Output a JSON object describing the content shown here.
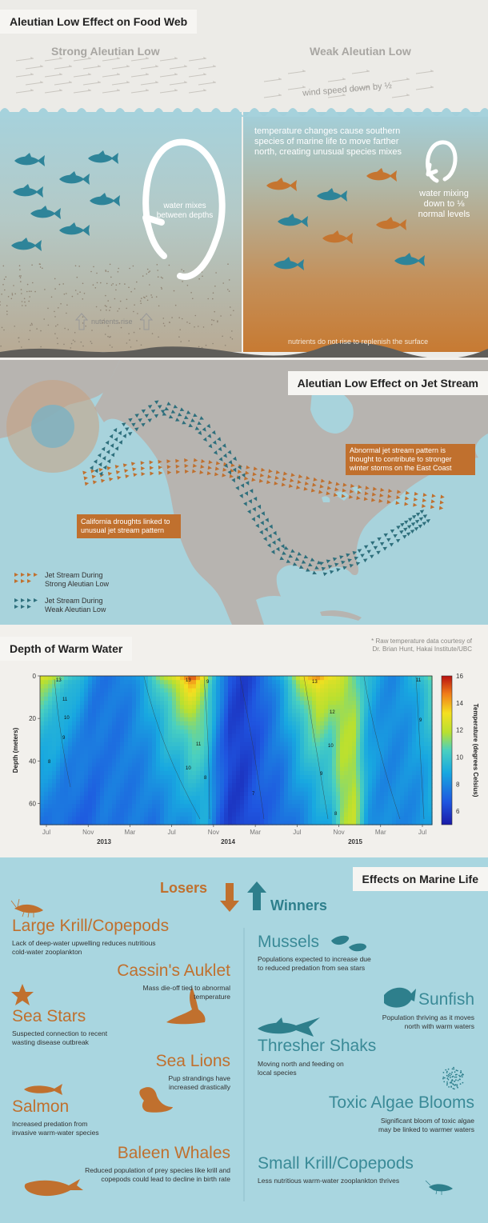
{
  "section1": {
    "title": "Aleutian Low Effect on Food Web",
    "strong_label": "Strong Aleutian Low",
    "weak_label": "Weak Aleutian Low",
    "wind_label": "wind speed down by ½",
    "mix_label_line1": "water mixes",
    "mix_label_line2": "between depths",
    "nutrients_rise": "nutrients rise",
    "temp_text_line1": "temperature changes cause southern",
    "temp_text_line2": "species of marine life to move farther",
    "temp_text_line3": "north, creating unusual species mixes",
    "weak_mix_line1": "water mixing",
    "weak_mix_line2": "down to ⅛",
    "weak_mix_line3": "normal levels",
    "nutrients_not": "nutrients do not rise to replenish the surface"
  },
  "section2": {
    "title": "Aleutian Low Effect on Jet Stream",
    "east_line1": "Abnormal jet stream pattern is",
    "east_line2": "thought to contribute to stronger",
    "east_line3": "winter storms on the East Coast",
    "cal_line1": "California droughts linked to",
    "cal_line2": "unusual jet stream pattern",
    "legend_strong_line1": "Jet Stream During",
    "legend_strong_line2": "Strong Aleutian Low",
    "legend_weak_line1": "Jet Stream During",
    "legend_weak_line2": "Weak Aleutian Low",
    "colors": {
      "strong": "#c0702e",
      "weak": "#2e6f7c"
    }
  },
  "section3": {
    "title": "Depth of Warm Water",
    "credit_line1": "* Raw temperature data courtesy of",
    "credit_line2": "Dr. Brian Hunt, Hakai Institute/UBC"
  },
  "chart_data": {
    "type": "heatmap",
    "ylabel": "Depth (meters)",
    "colorbar_label": "Temperature (degrees Celsius)",
    "y_ticks": [
      0,
      20,
      40,
      60
    ],
    "ylim": [
      70,
      0
    ],
    "colorbar_ticks": [
      6,
      8,
      10,
      12,
      14,
      16
    ],
    "colorbar_range": [
      5,
      16
    ],
    "x_ticks": [
      "Jul",
      "Nov",
      "Mar",
      "Jul",
      "Nov",
      "Mar",
      "Jul",
      "Nov",
      "Mar",
      "Jul"
    ],
    "years": [
      "2013",
      "2014",
      "2015"
    ],
    "contour_labels": [
      "13",
      "11",
      "10",
      "9",
      "8",
      "13",
      "11",
      "10",
      "9",
      "8",
      "7",
      "13",
      "12",
      "10",
      "9",
      "8",
      "11",
      "9"
    ],
    "surface_temp_by_month": [
      12.5,
      11.5,
      10.5,
      9.5,
      8,
      7.5,
      7.5,
      8,
      9,
      10.5,
      12,
      13.5,
      15,
      12.5,
      9,
      6.5,
      6,
      6.5,
      7.5,
      9,
      11,
      13,
      14.5,
      13,
      12,
      11,
      9.5,
      8.5,
      8,
      8.5,
      9.5,
      11
    ],
    "bottom_temp_by_month": [
      7.5,
      7.5,
      7,
      7,
      7,
      7.5,
      7.5,
      7.5,
      7.5,
      7.5,
      8,
      8,
      8.5,
      9,
      7,
      6,
      6,
      6.5,
      7,
      7,
      7.5,
      8,
      8.5,
      9,
      11.5,
      12,
      8.5,
      8,
      8,
      8,
      8,
      8.5
    ]
  },
  "section4": {
    "title": "Effects on Marine Life",
    "losers_label": "Losers",
    "winners_label": "Winners",
    "losers": [
      {
        "name": "Large Krill/Copepods",
        "desc_line1": "Lack of deep-water upwelling reduces nutritious",
        "desc_line2": "cold-water zooplankton",
        "icon": "krill-icon"
      },
      {
        "name": "Cassin's Auklet",
        "desc_line1": "Mass die-off tied to abnormal",
        "desc_line2": "temperature",
        "icon": "bird-icon"
      },
      {
        "name": "Sea Stars",
        "desc_line1": "Suspected connection to recent",
        "desc_line2": "wasting disease outbreak",
        "icon": "starfish-icon"
      },
      {
        "name": "Sea Lions",
        "desc_line1": "Pup strandings have",
        "desc_line2": "increased drastically",
        "icon": "sea-lion-icon"
      },
      {
        "name": "Salmon",
        "desc_line1": "Increased predation from",
        "desc_line2": "invasive warm-water species",
        "icon": "salmon-icon"
      },
      {
        "name": "Baleen Whales",
        "desc_line1": "Reduced population of prey species like krill and",
        "desc_line2": "copepods could lead to decline in birth rate",
        "icon": "whale-icon"
      }
    ],
    "winners": [
      {
        "name": "Mussels",
        "desc_line1": "Populations expected to increase due",
        "desc_line2": "to reduced predation from sea stars",
        "icon": "mussel-icon"
      },
      {
        "name": "Sunfish",
        "desc_line1": "Population thriving as it moves",
        "desc_line2": "north with warm waters",
        "icon": "sunfish-icon"
      },
      {
        "name": "Thresher Shaks",
        "desc_line1": "Moving north and feeding on",
        "desc_line2": "local species",
        "icon": "shark-icon"
      },
      {
        "name": "Toxic Algae Blooms",
        "desc_line1": "Significant bloom of toxic algae",
        "desc_line2": "may be linked to warmer waters",
        "icon": "algae-icon"
      },
      {
        "name": "Small Krill/Copepods",
        "desc_line1": "Less nutritious warm-water zooplankton thrives",
        "desc_line2": "",
        "icon": "krill-icon"
      }
    ]
  }
}
